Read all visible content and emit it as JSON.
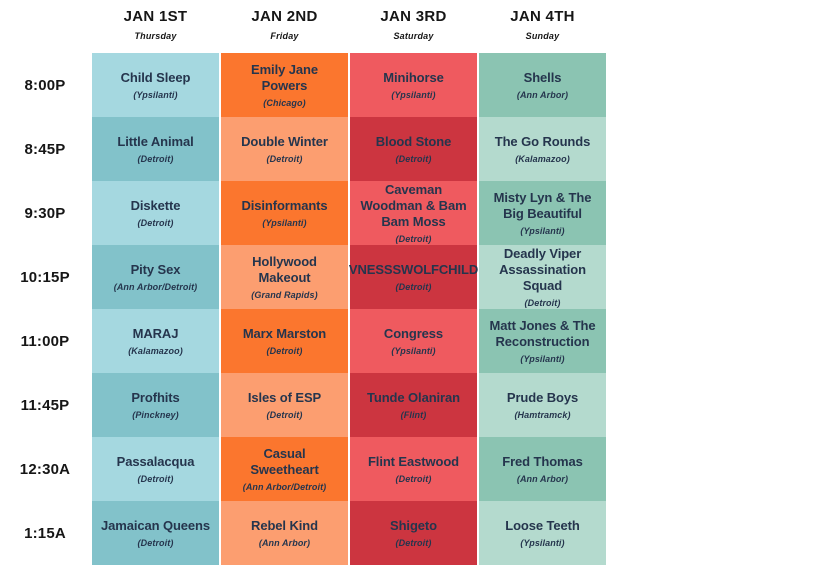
{
  "palette": {
    "col1_light": "#a5d8e0",
    "col1_dark": "#82c2ca",
    "col2_orange": "#fb762e",
    "col2_salmon": "#fc9e70",
    "col3_salmon_red": "#ef5a5f",
    "col3_dark_red": "#cc3540",
    "col4_medium_green": "#8bc4b2",
    "col4_light_mint": "#b4dace",
    "band_text": "#25354d",
    "header_text": "#161616"
  },
  "times": [
    "8:00P",
    "8:45P",
    "9:30P",
    "10:15P",
    "11:00P",
    "11:45P",
    "12:30A",
    "1:15A"
  ],
  "days": [
    {
      "label": "JAN 1ST",
      "sublabel": "Thursday",
      "shows": [
        {
          "name": "Child Sleep",
          "location": "(Ypsilanti)"
        },
        {
          "name": "Little Animal",
          "location": "(Detroit)"
        },
        {
          "name": "Diskette",
          "location": "(Detroit)"
        },
        {
          "name": "Pity Sex",
          "location": "(Ann Arbor/Detroit)"
        },
        {
          "name": "MARAJ",
          "location": "(Kalamazoo)"
        },
        {
          "name": "Profhits",
          "location": "(Pinckney)"
        },
        {
          "name": "Passalacqua",
          "location": "(Detroit)"
        },
        {
          "name": "Jamaican Queens",
          "location": "(Detroit)"
        }
      ]
    },
    {
      "label": "JAN 2ND",
      "sublabel": "Friday",
      "shows": [
        {
          "name": "Emily Jane Powers",
          "location": "(Chicago)"
        },
        {
          "name": "Double Winter",
          "location": "(Detroit)"
        },
        {
          "name": "Disinformants",
          "location": "(Ypsilanti)"
        },
        {
          "name": "Hollywood Makeout",
          "location": "(Grand Rapids)"
        },
        {
          "name": "Marx Marston",
          "location": "(Detroit)"
        },
        {
          "name": "Isles of ESP",
          "location": "(Detroit)"
        },
        {
          "name": "Casual Sweetheart",
          "location": "(Ann Arbor/Detroit)"
        },
        {
          "name": "Rebel Kind",
          "location": "(Ann Arbor)"
        }
      ]
    },
    {
      "label": "JAN 3RD",
      "sublabel": "Saturday",
      "shows": [
        {
          "name": "Minihorse",
          "location": "(Ypsilanti)"
        },
        {
          "name": "Blood Stone",
          "location": "(Detroit)"
        },
        {
          "name": "Caveman Woodman & Bam Bam Moss",
          "location": "(Detroit)"
        },
        {
          "name": "VNESSSWOLFCHILD",
          "location": "(Detroit)"
        },
        {
          "name": "Congress",
          "location": "(Ypsilanti)"
        },
        {
          "name": "Tunde Olaniran",
          "location": "(Flint)"
        },
        {
          "name": "Flint Eastwood",
          "location": "(Detroit)"
        },
        {
          "name": "Shigeto",
          "location": "(Detroit)"
        }
      ]
    },
    {
      "label": "JAN 4TH",
      "sublabel": "Sunday",
      "shows": [
        {
          "name": "Shells",
          "location": "(Ann Arbor)"
        },
        {
          "name": "The Go Rounds",
          "location": "(Kalamazoo)"
        },
        {
          "name": "Misty Lyn & The Big Beautiful",
          "location": "(Ypsilanti)"
        },
        {
          "name": "Deadly Viper Assassination Squad",
          "location": "(Detroit)"
        },
        {
          "name": "Matt Jones & The Reconstruction",
          "location": "(Ypsilanti)"
        },
        {
          "name": "Prude Boys",
          "location": "(Hamtramck)"
        },
        {
          "name": "Fred Thomas",
          "location": "(Ann Arbor)"
        },
        {
          "name": "Loose Teeth",
          "location": "(Ypsilanti)"
        }
      ]
    }
  ]
}
